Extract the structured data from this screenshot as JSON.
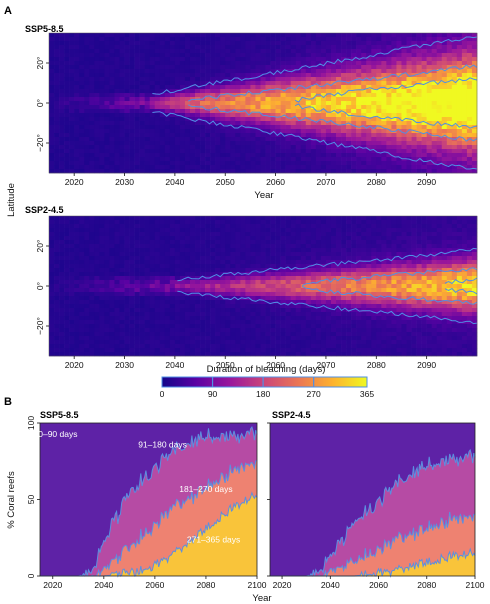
{
  "panel_a_letter": "A",
  "panel_b_letter": "B",
  "chart_data": [
    {
      "type": "heatmap",
      "panel": "A",
      "title": "SSP5-8.5",
      "xlabel": "Year",
      "ylabel": "Latitude",
      "xlim": [
        2015,
        2100
      ],
      "ylim": [
        -35,
        35
      ],
      "x_ticks": [
        2020,
        2030,
        2040,
        2050,
        2060,
        2070,
        2080,
        2090
      ],
      "x_tick_labels": [
        "2020",
        "2030",
        "2040",
        "2050",
        "2060",
        "2070",
        "2080",
        "2090"
      ],
      "y_ticks": [
        20,
        0,
        -20
      ],
      "y_tick_labels": [
        "20°",
        "0°",
        "−20°"
      ],
      "value_unit": "days",
      "value_range": [
        0,
        365
      ],
      "equatorial_band": {
        "onset_year": 2035,
        "peak_value_2100": 360,
        "halfwidth_start_deg": 3,
        "halfwidth_end_deg": 22,
        "growth_rate": 1.0
      },
      "contour_levels": [
        90,
        180,
        270
      ]
    },
    {
      "type": "heatmap",
      "panel": "A",
      "title": "SSP2-4.5",
      "xlabel": "",
      "ylabel": "",
      "xlim": [
        2015,
        2100
      ],
      "ylim": [
        -35,
        35
      ],
      "x_ticks": [
        2020,
        2030,
        2040,
        2050,
        2060,
        2070,
        2080,
        2090
      ],
      "x_tick_labels": [
        "2020",
        "2030",
        "2040",
        "2050",
        "2060",
        "2070",
        "2080",
        "2090"
      ],
      "y_ticks": [
        20,
        0,
        -20
      ],
      "y_tick_labels": [
        "20°",
        "0°",
        "−20°"
      ],
      "value_unit": "days",
      "value_range": [
        0,
        365
      ],
      "equatorial_band": {
        "onset_year": 2040,
        "peak_value_2100": 290,
        "halfwidth_start_deg": 3,
        "halfwidth_end_deg": 12,
        "growth_rate": 0.55
      },
      "contour_levels": [
        90,
        180,
        270
      ]
    },
    {
      "type": "colorbar",
      "title": "Duration of bleaching (days)",
      "ticks": [
        0,
        90,
        180,
        270,
        365
      ],
      "tick_labels": [
        "0",
        "90",
        "180",
        "270",
        "365"
      ],
      "colors": [
        "#14068a",
        "#5b02a3",
        "#9a179b",
        "#cb4679",
        "#eb7655",
        "#fdb22f",
        "#f0f921"
      ]
    },
    {
      "type": "area",
      "panel": "B",
      "title": "SSP5-8.5",
      "xlabel": "Year",
      "ylabel": "% Coral reefs",
      "xlim": [
        2015,
        2100
      ],
      "ylim": [
        0,
        100
      ],
      "x_ticks": [
        2020,
        2040,
        2060,
        2080,
        2100
      ],
      "x_tick_labels": [
        "2020",
        "2040",
        "2060",
        "2080",
        "2100"
      ],
      "y_ticks": [
        0,
        50,
        100
      ],
      "y_tick_labels": [
        "0",
        "50",
        "100"
      ],
      "stacked": true,
      "x": [
        2015,
        2020,
        2025,
        2030,
        2035,
        2040,
        2045,
        2050,
        2055,
        2060,
        2065,
        2070,
        2075,
        2080,
        2085,
        2090,
        2095,
        2100
      ],
      "series": [
        {
          "name": "271–365 days",
          "color": "#f9c43a",
          "values": [
            0,
            0,
            0,
            0,
            0,
            0,
            1,
            2,
            4,
            7,
            12,
            18,
            24,
            31,
            38,
            44,
            49,
            53
          ]
        },
        {
          "name": "181–270 days",
          "color": "#ee8271",
          "values": [
            0,
            0,
            0,
            0,
            0,
            4,
            10,
            17,
            23,
            27,
            29,
            29,
            28,
            27,
            25,
            24,
            23,
            22
          ]
        },
        {
          "name": "91–180 days",
          "color": "#b64ba4",
          "values": [
            0,
            0,
            0,
            0,
            2,
            18,
            28,
            34,
            37,
            38,
            37,
            36,
            35,
            32,
            28,
            24,
            21,
            20
          ]
        },
        {
          "name": "0–90 days",
          "color": "#5e22a6",
          "values": [
            100,
            100,
            100,
            100,
            98,
            78,
            61,
            47,
            36,
            28,
            22,
            17,
            13,
            10,
            9,
            8,
            7,
            5
          ]
        }
      ]
    },
    {
      "type": "area",
      "panel": "B",
      "title": "SSP2-4.5",
      "xlabel": "",
      "ylabel": "",
      "xlim": [
        2015,
        2100
      ],
      "ylim": [
        0,
        100
      ],
      "x_ticks": [
        2020,
        2040,
        2060,
        2080,
        2100
      ],
      "x_tick_labels": [
        "2020",
        "2040",
        "2060",
        "2080",
        "2100"
      ],
      "y_ticks": [
        0,
        50,
        100
      ],
      "y_tick_labels": [
        "",
        "",
        ""
      ],
      "stacked": true,
      "x": [
        2015,
        2020,
        2025,
        2030,
        2035,
        2040,
        2045,
        2050,
        2055,
        2060,
        2065,
        2070,
        2075,
        2080,
        2085,
        2090,
        2095,
        2100
      ],
      "series": [
        {
          "name": "271–365 days",
          "color": "#f9c43a",
          "values": [
            0,
            0,
            0,
            0,
            0,
            0,
            0,
            0,
            1,
            2,
            3,
            5,
            7,
            9,
            11,
            13,
            14,
            15
          ]
        },
        {
          "name": "181–270 days",
          "color": "#ee8271",
          "values": [
            0,
            0,
            0,
            0,
            0,
            3,
            6,
            10,
            13,
            16,
            18,
            20,
            21,
            22,
            23,
            24,
            24,
            25
          ]
        },
        {
          "name": "91–180 days",
          "color": "#b64ba4",
          "values": [
            0,
            0,
            0,
            0,
            2,
            10,
            18,
            24,
            29,
            32,
            35,
            37,
            39,
            40,
            40,
            40,
            40,
            40
          ]
        },
        {
          "name": "0–90 days",
          "color": "#5e22a6",
          "values": [
            100,
            100,
            100,
            100,
            98,
            87,
            76,
            66,
            57,
            50,
            44,
            38,
            33,
            29,
            26,
            23,
            22,
            20
          ]
        }
      ]
    }
  ]
}
